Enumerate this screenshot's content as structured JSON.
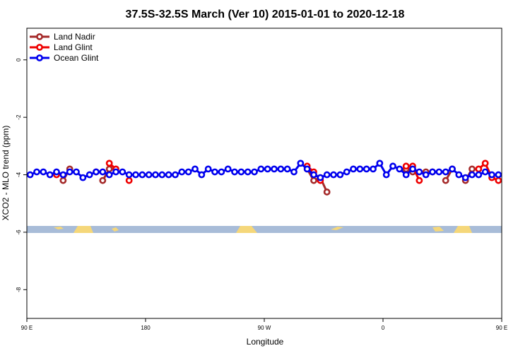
{
  "chart_data": {
    "type": "line",
    "title": "37.5S-32.5S March (Ver 10)   2015-01-01 to 2020-12-18",
    "xlabel": "Longitude",
    "ylabel": "XCO2 - MLO trend (ppm)",
    "xlim": [
      90,
      450
    ],
    "ylim": [
      -9,
      1.1
    ],
    "x_ticks": [
      {
        "value": 90,
        "label": "90 E"
      },
      {
        "value": 180,
        "label": "180"
      },
      {
        "value": 270,
        "label": "90 W"
      },
      {
        "value": 360,
        "label": "0"
      },
      {
        "value": 450,
        "label": "90 E"
      },
      {
        "value": 540,
        "label": "180"
      }
    ],
    "y_ticks": [
      {
        "value": 0,
        "label": "0"
      },
      {
        "value": -2,
        "label": "-2"
      },
      {
        "value": -4,
        "label": "-4"
      },
      {
        "value": -6,
        "label": "-6"
      },
      {
        "value": -8,
        "label": "-8"
      }
    ],
    "legend_position": "top-left",
    "grid": false,
    "colors": {
      "land_strip": "#a8bcd8",
      "land_mass": "#f5d77a"
    },
    "series": [
      {
        "name": "Land Nadir",
        "color": "#a52a2a",
        "points": [
          [
            117.5,
            -4.2
          ],
          [
            122.5,
            -3.8
          ],
          [
            147.5,
            -4.2
          ],
          [
            152.5,
            -3.8
          ],
          [
            302.5,
            -3.8
          ],
          [
            307.5,
            -4.2
          ],
          [
            312.5,
            -4.1
          ],
          [
            317.5,
            -4.6
          ],
          [
            377.5,
            -3.8
          ],
          [
            382.5,
            -3.9
          ],
          [
            392.5,
            -3.9
          ],
          [
            397.5,
            -3.9
          ],
          [
            407.5,
            -4.2
          ],
          [
            412.5,
            -3.8
          ],
          [
            422.5,
            -4.2
          ],
          [
            427.5,
            -3.8
          ]
        ]
      },
      {
        "name": "Land Glint",
        "color": "#ee0000",
        "points": [
          [
            112.5,
            -4.0
          ],
          [
            142.5,
            -3.9
          ],
          [
            152.5,
            -3.6
          ],
          [
            157.5,
            -3.8
          ],
          [
            167.5,
            -4.2
          ],
          [
            302.5,
            -3.7
          ],
          [
            307.5,
            -3.9
          ],
          [
            312.5,
            -4.2
          ],
          [
            377.5,
            -3.7
          ],
          [
            382.5,
            -3.7
          ],
          [
            387.5,
            -4.2
          ],
          [
            432.5,
            -3.8
          ],
          [
            437.5,
            -3.6
          ],
          [
            442.5,
            -4.1
          ],
          [
            447.5,
            -4.2
          ]
        ]
      },
      {
        "name": "Ocean Glint",
        "color": "#0000ee",
        "points": [
          [
            92.5,
            -4.0
          ],
          [
            97.5,
            -3.9
          ],
          [
            102.5,
            -3.9
          ],
          [
            107.5,
            -4.0
          ],
          [
            112.5,
            -3.9
          ],
          [
            117.5,
            -4.0
          ],
          [
            122.5,
            -3.9
          ],
          [
            127.5,
            -3.9
          ],
          [
            132.5,
            -4.1
          ],
          [
            137.5,
            -4.0
          ],
          [
            142.5,
            -3.9
          ],
          [
            147.5,
            -3.9
          ],
          [
            152.5,
            -4.0
          ],
          [
            157.5,
            -3.9
          ],
          [
            162.5,
            -3.9
          ],
          [
            167.5,
            -4.0
          ],
          [
            172.5,
            -4.0
          ],
          [
            177.5,
            -4.0
          ],
          [
            182.5,
            -4.0
          ],
          [
            187.5,
            -4.0
          ],
          [
            192.5,
            -4.0
          ],
          [
            197.5,
            -4.0
          ],
          [
            202.5,
            -4.0
          ],
          [
            207.5,
            -3.9
          ],
          [
            212.5,
            -3.9
          ],
          [
            217.5,
            -3.8
          ],
          [
            222.5,
            -4.0
          ],
          [
            227.5,
            -3.8
          ],
          [
            232.5,
            -3.9
          ],
          [
            237.5,
            -3.9
          ],
          [
            242.5,
            -3.8
          ],
          [
            247.5,
            -3.9
          ],
          [
            252.5,
            -3.9
          ],
          [
            257.5,
            -3.9
          ],
          [
            262.5,
            -3.9
          ],
          [
            267.5,
            -3.8
          ],
          [
            272.5,
            -3.8
          ],
          [
            277.5,
            -3.8
          ],
          [
            282.5,
            -3.8
          ],
          [
            287.5,
            -3.8
          ],
          [
            292.5,
            -3.9
          ],
          [
            297.5,
            -3.6
          ],
          [
            302.5,
            -3.8
          ],
          [
            307.5,
            -4.0
          ],
          [
            312.5,
            -4.1
          ],
          [
            317.5,
            -4.0
          ],
          [
            322.5,
            -4.0
          ],
          [
            327.5,
            -4.0
          ],
          [
            332.5,
            -3.9
          ],
          [
            337.5,
            -3.8
          ],
          [
            342.5,
            -3.8
          ],
          [
            347.5,
            -3.8
          ],
          [
            352.5,
            -3.8
          ],
          [
            357.5,
            -3.6
          ],
          [
            362.5,
            -4.0
          ],
          [
            367.5,
            -3.7
          ],
          [
            372.5,
            -3.8
          ],
          [
            377.5,
            -4.0
          ],
          [
            382.5,
            -3.8
          ],
          [
            387.5,
            -3.9
          ],
          [
            392.5,
            -4.0
          ],
          [
            397.5,
            -3.9
          ],
          [
            402.5,
            -3.9
          ],
          [
            407.5,
            -3.9
          ],
          [
            412.5,
            -3.8
          ],
          [
            417.5,
            -4.0
          ],
          [
            422.5,
            -4.1
          ],
          [
            427.5,
            -4.0
          ],
          [
            432.5,
            -4.0
          ],
          [
            437.5,
            -3.9
          ],
          [
            442.5,
            -4.0
          ],
          [
            447.5,
            -4.0
          ]
        ]
      }
    ]
  }
}
